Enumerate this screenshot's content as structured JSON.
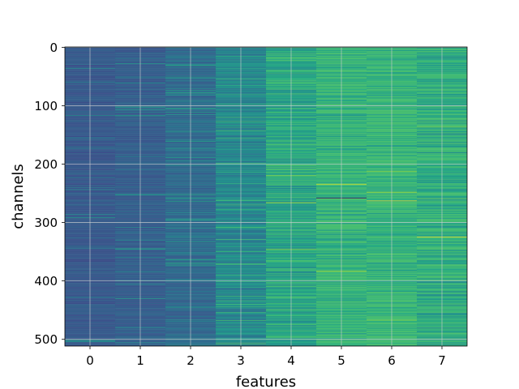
{
  "chart_data": {
    "type": "heatmap",
    "title": "",
    "xlabel": "features",
    "ylabel": "channels",
    "x_ticks": [
      "0",
      "1",
      "2",
      "3",
      "4",
      "5",
      "6",
      "7"
    ],
    "y_ticks": [
      "0",
      "100",
      "200",
      "300",
      "400",
      "500"
    ],
    "y_tick_values": [
      0,
      100,
      200,
      300,
      400,
      500
    ],
    "n_rows": 512,
    "n_cols": 8,
    "ylim": [
      511.5,
      -0.5
    ],
    "xlim": [
      -0.5,
      7.5
    ],
    "grid": true,
    "colormap": "viridis",
    "column_intensity": [
      0.12,
      0.14,
      0.18,
      0.3,
      0.42,
      0.5,
      0.5,
      0.44
    ],
    "bright_rows": [
      {
        "feature": 0,
        "channel": 501,
        "value": 0.55
      },
      {
        "feature": 2,
        "channel": 202,
        "value": 0.5
      },
      {
        "feature": 3,
        "channel": 15,
        "value": 0.55
      },
      {
        "feature": 3,
        "channel": 101,
        "value": 0.5
      },
      {
        "feature": 3,
        "channel": 259,
        "value": 0.55
      },
      {
        "feature": 4,
        "channel": 80,
        "value": 0.75
      },
      {
        "feature": 4,
        "channel": 220,
        "value": 0.85
      },
      {
        "feature": 4,
        "channel": 266,
        "value": 0.9
      },
      {
        "feature": 4,
        "channel": 346,
        "value": 0.85
      },
      {
        "feature": 4,
        "channel": 420,
        "value": 0.6
      },
      {
        "feature": 5,
        "channel": 64,
        "value": 0.7
      },
      {
        "feature": 5,
        "channel": 108,
        "value": 0.7
      },
      {
        "feature": 5,
        "channel": 184,
        "value": 0.65
      },
      {
        "feature": 5,
        "channel": 235,
        "value": 0.95
      },
      {
        "feature": 5,
        "channel": 258,
        "value": 0.0
      },
      {
        "feature": 5,
        "channel": 383,
        "value": 0.9
      },
      {
        "feature": 5,
        "channel": 437,
        "value": 0.7
      },
      {
        "feature": 5,
        "channel": 496,
        "value": 0.7
      },
      {
        "feature": 6,
        "channel": 212,
        "value": 0.85
      },
      {
        "feature": 6,
        "channel": 248,
        "value": 0.9
      },
      {
        "feature": 6,
        "channel": 263,
        "value": 1.0
      },
      {
        "feature": 6,
        "channel": 303,
        "value": 0.65
      },
      {
        "feature": 6,
        "channel": 467,
        "value": 0.85
      },
      {
        "feature": 7,
        "channel": 2,
        "value": 0.6
      },
      {
        "feature": 7,
        "channel": 70,
        "value": 0.7
      },
      {
        "feature": 7,
        "channel": 136,
        "value": 0.8
      },
      {
        "feature": 7,
        "channel": 259,
        "value": 0.8
      },
      {
        "feature": 7,
        "channel": 325,
        "value": 0.98
      },
      {
        "feature": 7,
        "channel": 398,
        "value": 0.7
      },
      {
        "feature": 7,
        "channel": 476,
        "value": 0.65
      }
    ]
  }
}
